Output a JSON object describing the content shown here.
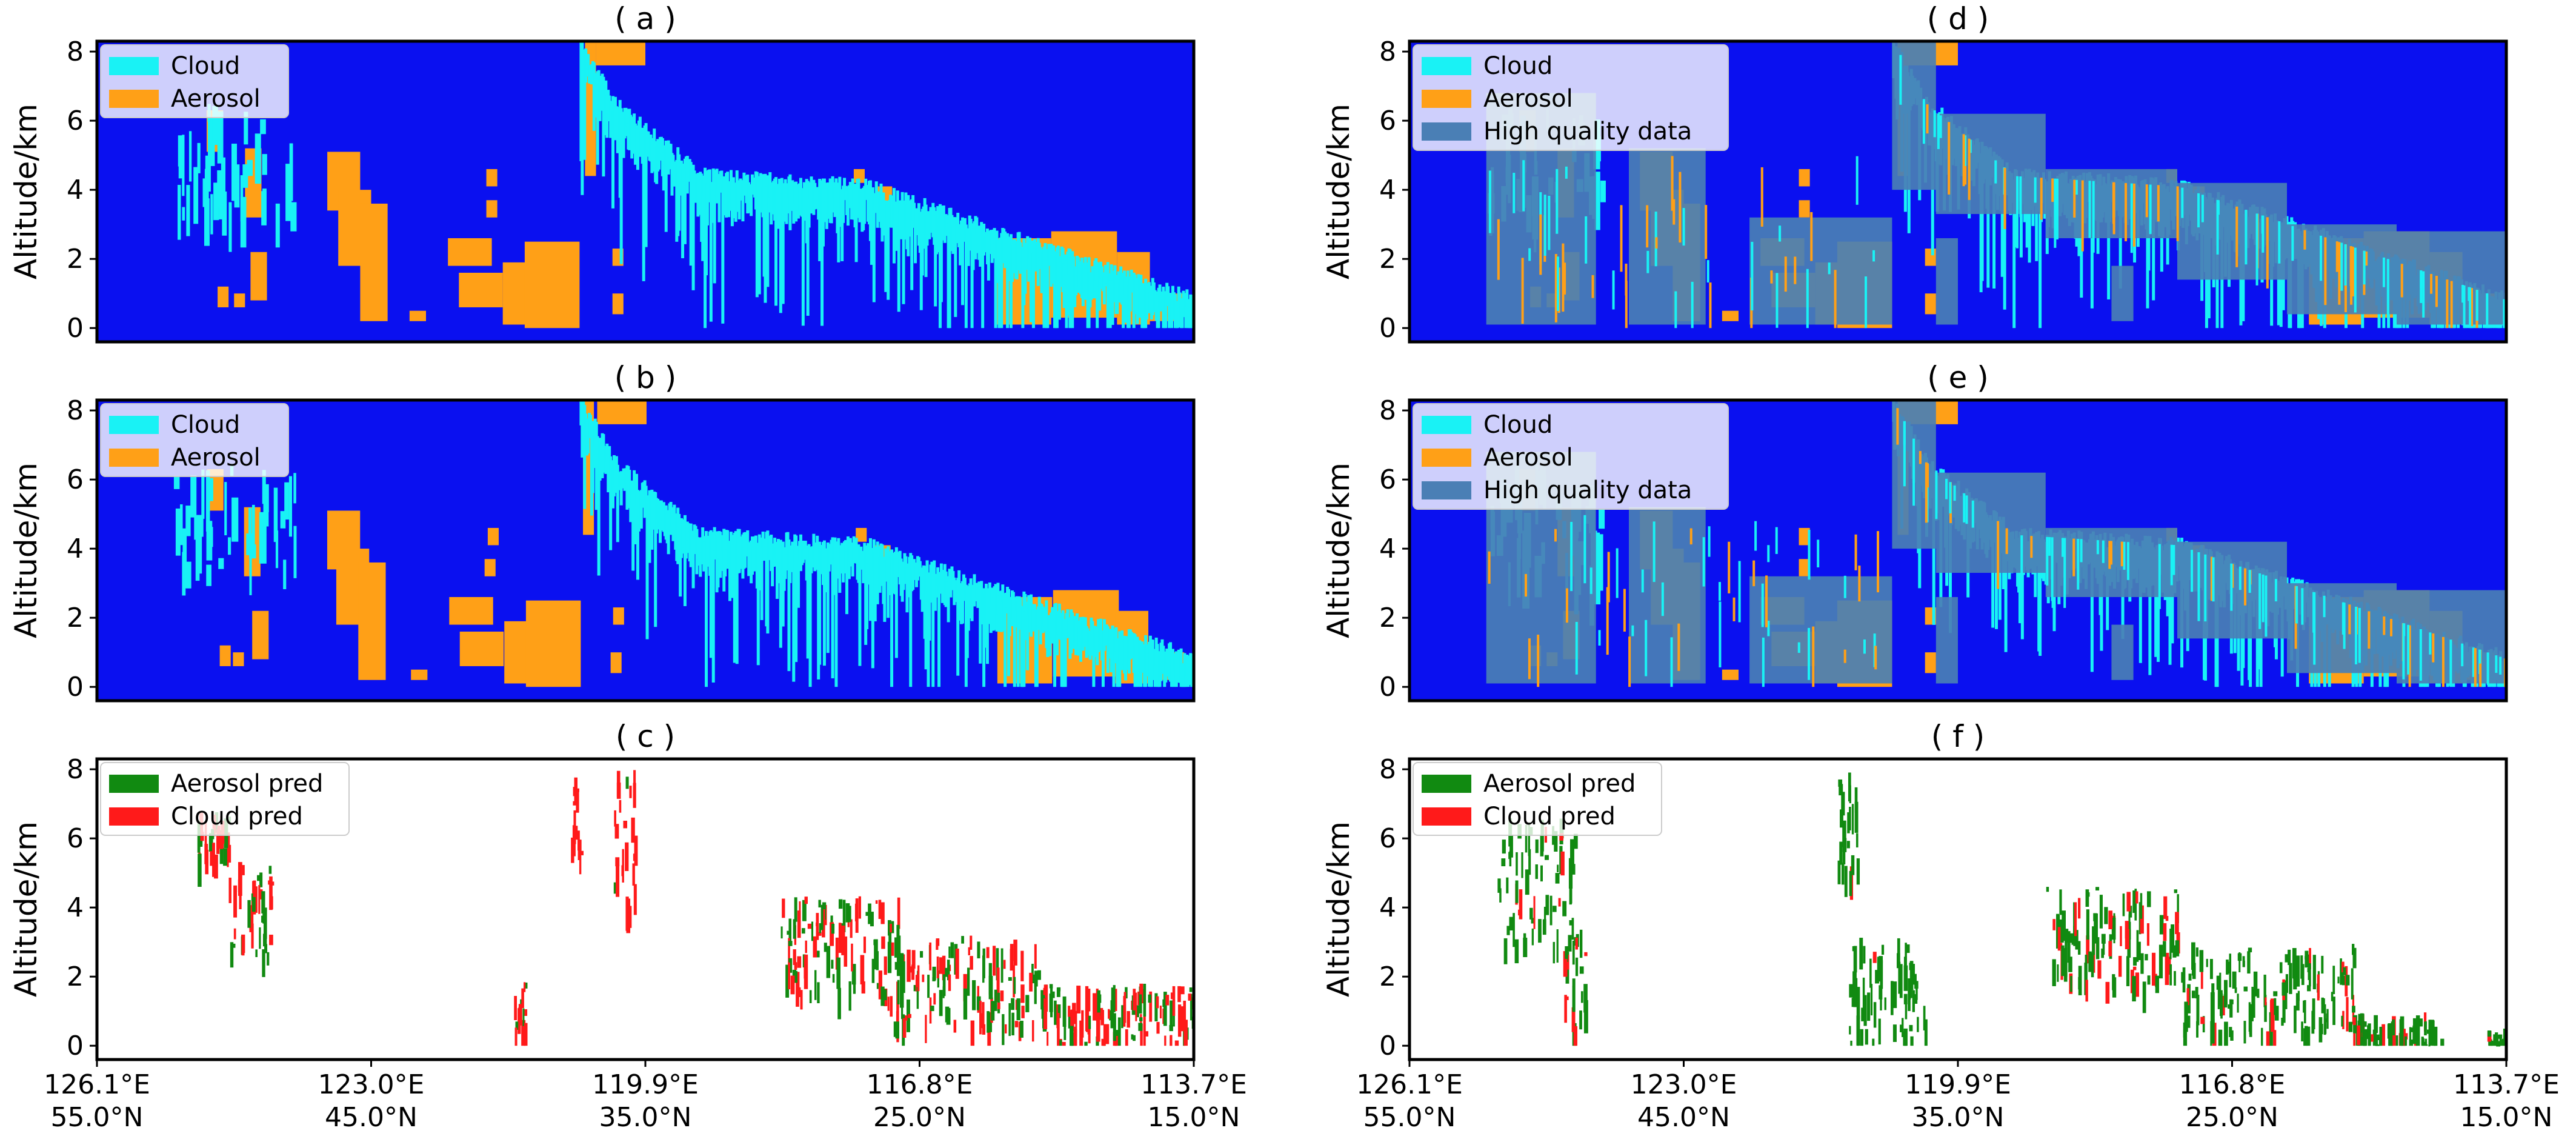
{
  "chart_data": [
    {
      "panel": "a",
      "type": "heatmap",
      "title": "( a )",
      "ylabel": "Altitude/km",
      "ylim": [
        -0.4,
        8.3
      ],
      "yticks": [
        "0",
        "2",
        "4",
        "6",
        "8"
      ],
      "xticks": [],
      "legend": [
        "Cloud",
        "Aerosol"
      ],
      "legend_loc": "upper-left",
      "colors": {
        "background": "#0a10f0",
        "cloud": "#19f2f5",
        "aerosol": "#ffa017"
      }
    },
    {
      "panel": "b",
      "type": "heatmap",
      "title": "( b )",
      "ylabel": "Altitude/km",
      "ylim": [
        -0.4,
        8.3
      ],
      "yticks": [
        "0",
        "2",
        "4",
        "6",
        "8"
      ],
      "xticks": [],
      "legend": [
        "Cloud",
        "Aerosol"
      ],
      "legend_loc": "upper-left",
      "colors": {
        "background": "#0a10f0",
        "cloud": "#19f2f5",
        "aerosol": "#ffa017"
      }
    },
    {
      "panel": "c",
      "type": "heatmap",
      "title": "( c )",
      "ylabel": "Altitude/km",
      "ylim": [
        -0.4,
        8.3
      ],
      "yticks": [
        "0",
        "2",
        "4",
        "6",
        "8"
      ],
      "xticks": [
        "126.1°E\n55.0°N",
        "123.0°E\n45.0°N",
        "119.9°E\n35.0°N",
        "116.8°E\n25.0°N",
        "113.7°E\n15.0°N"
      ],
      "legend": [
        "Aerosol pred",
        "Cloud pred"
      ],
      "legend_loc": "upper-left",
      "colors": {
        "background": "#ffffff",
        "aerosol_pred": "#118a11",
        "cloud_pred": "#ff1a1a"
      }
    },
    {
      "panel": "d",
      "type": "heatmap",
      "title": "( d )",
      "ylabel": "Altitude/km",
      "ylim": [
        -0.4,
        8.3
      ],
      "yticks": [
        "0",
        "2",
        "4",
        "6",
        "8"
      ],
      "xticks": [],
      "legend": [
        "Cloud",
        "Aerosol",
        "High quality data"
      ],
      "legend_loc": "upper-left",
      "colors": {
        "background": "#0a10f0",
        "cloud": "#19f2f5",
        "aerosol": "#ffa017",
        "high_quality": "#4a7fb5"
      }
    },
    {
      "panel": "e",
      "type": "heatmap",
      "title": "( e )",
      "ylabel": "Altitude/km",
      "ylim": [
        -0.4,
        8.3
      ],
      "yticks": [
        "0",
        "2",
        "4",
        "6",
        "8"
      ],
      "xticks": [],
      "legend": [
        "Cloud",
        "Aerosol",
        "High quality data"
      ],
      "legend_loc": "upper-left",
      "colors": {
        "background": "#0a10f0",
        "cloud": "#19f2f5",
        "aerosol": "#ffa017",
        "high_quality": "#4a7fb5"
      }
    },
    {
      "panel": "f",
      "type": "heatmap",
      "title": "( f )",
      "ylabel": "Altitude/km",
      "ylim": [
        -0.4,
        8.3
      ],
      "yticks": [
        "0",
        "2",
        "4",
        "6",
        "8"
      ],
      "xticks": [
        "126.1°E\n55.0°N",
        "123.0°E\n45.0°N",
        "119.9°E\n35.0°N",
        "116.8°E\n25.0°N",
        "113.7°E\n15.0°N"
      ],
      "legend": [
        "Aerosol pred",
        "Cloud pred"
      ],
      "legend_loc": "upper-left",
      "colors": {
        "background": "#ffffff",
        "aerosol_pred": "#118a11",
        "cloud_pred": "#ff1a1a"
      }
    }
  ]
}
